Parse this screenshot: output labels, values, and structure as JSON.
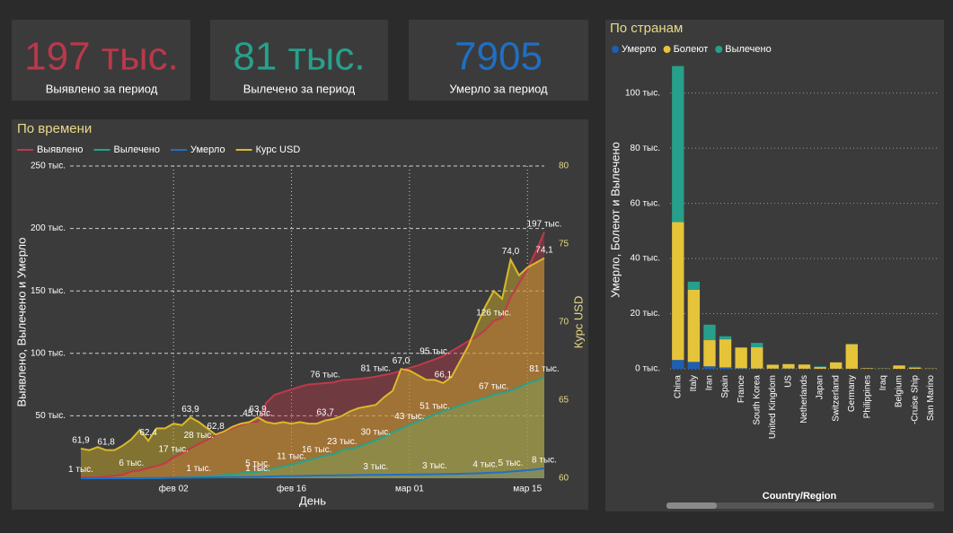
{
  "kpis": [
    {
      "value": "197 тыс.",
      "label": "Выявлено за период"
    },
    {
      "value": "81 тыс.",
      "label": "Вылечено за период"
    },
    {
      "value": "7905",
      "label": "Умерло за период"
    }
  ],
  "chart_data": [
    {
      "type": "line",
      "title": "По времени",
      "x_label": "День",
      "y_label": "Выявлено, Вылечено и Умерло",
      "y2_label": "Курс USD",
      "area": true,
      "grid": true,
      "categories": [
        null,
        null,
        null,
        null,
        null,
        null,
        null,
        null,
        null,
        null,
        null,
        "фев 02",
        null,
        null,
        null,
        null,
        null,
        null,
        null,
        null,
        null,
        null,
        null,
        null,
        null,
        "фев 16",
        null,
        null,
        null,
        null,
        null,
        null,
        null,
        null,
        null,
        null,
        null,
        null,
        null,
        "мар 01",
        null,
        null,
        null,
        null,
        null,
        null,
        null,
        null,
        null,
        null,
        null,
        null,
        null,
        "мар 15",
        null,
        null
      ],
      "ylim": [
        0,
        250
      ],
      "yticks": [
        {
          "value": 50,
          "label": "50 тыс."
        },
        {
          "value": 100,
          "label": "100 тыс."
        },
        {
          "value": 150,
          "label": "150 тыс."
        },
        {
          "value": 200,
          "label": "200 тыс."
        },
        {
          "value": 250,
          "label": "250 тыс."
        }
      ],
      "y2lim": [
        60,
        80
      ],
      "y2ticks": [
        60,
        65,
        70,
        75,
        80
      ],
      "series": [
        {
          "name": "Выявлено",
          "color": "#c1394a",
          "values": [
            0.6,
            0.7,
            0.9,
            1.4,
            2.1,
            2.9,
            5.6,
            6.2,
            8.2,
            9.9,
            12.0,
            16.8,
            19.9,
            23.9,
            27.6,
            30.8,
            34.4,
            37.1,
            40.2,
            42.8,
            44.8,
            45.2,
            60.4,
            66.9,
            69.0,
            71.2,
            73.3,
            75.1,
            75.6,
            76.2,
            76.8,
            78.6,
            79.0,
            79.6,
            80.4,
            81.4,
            82.7,
            84.1,
            86.0,
            88.4,
            90.3,
            92.8,
            95.1,
            97.9,
            101.8,
            105.8,
            109.8,
            113.6,
            118.6,
            125.9,
            128.4,
            145.2,
            156.1,
            167.5,
            181.6,
            197.1
          ],
          "value_labels": [
            "1 тыс.",
            null,
            null,
            null,
            null,
            null,
            "6 тыс.",
            null,
            null,
            null,
            null,
            "17 тыс.",
            null,
            null,
            "28 тыс.",
            null,
            null,
            null,
            null,
            null,
            null,
            "45 тыс.",
            null,
            null,
            null,
            null,
            null,
            null,
            null,
            "76 тыс.",
            null,
            null,
            null,
            null,
            null,
            "81 тыс.",
            null,
            null,
            null,
            null,
            null,
            null,
            "95 тыс.",
            null,
            null,
            null,
            null,
            null,
            null,
            "126 тыс.",
            null,
            null,
            null,
            null,
            null,
            "197 тыс."
          ]
        },
        {
          "name": "Вылечено",
          "color": "#26a38b",
          "values": [
            0.03,
            0.03,
            0.04,
            0.04,
            0.05,
            0.06,
            0.11,
            0.13,
            0.14,
            0.22,
            0.28,
            0.47,
            0.62,
            0.85,
            1.12,
            1.49,
            2.01,
            2.62,
            3.24,
            3.95,
            4.68,
            5.15,
            6.3,
            8.06,
            9.4,
            10.87,
            12.58,
            14.35,
            16.12,
            18.18,
            18.89,
            22.89,
            23.39,
            25.23,
            27.91,
            30.38,
            33.28,
            36.71,
            39.78,
            42.72,
            45.6,
            48.23,
            51.17,
            53.8,
            55.87,
            58.36,
            60.69,
            62.49,
            64.4,
            67.0,
            68.32,
            70.25,
            72.62,
            76.03,
            78.09,
            80.84
          ],
          "value_labels": [
            null,
            null,
            null,
            null,
            null,
            null,
            null,
            null,
            null,
            null,
            null,
            null,
            null,
            null,
            "1 тыс.",
            null,
            null,
            null,
            null,
            null,
            null,
            "5 тыс.",
            null,
            null,
            null,
            "11 тыс.",
            null,
            null,
            "16 тыс.",
            null,
            null,
            "23 тыс.",
            null,
            null,
            null,
            "30 тыс.",
            null,
            null,
            null,
            "43 тыс.",
            null,
            null,
            "51 тыс.",
            null,
            null,
            null,
            null,
            null,
            null,
            "67 тыс.",
            null,
            null,
            null,
            null,
            null,
            "81 тыс."
          ]
        },
        {
          "name": "Умерло",
          "color": "#1e6fc6",
          "values": [
            0.017,
            0.018,
            0.026,
            0.042,
            0.056,
            0.082,
            0.131,
            0.133,
            0.171,
            0.213,
            0.259,
            0.362,
            0.426,
            0.492,
            0.564,
            0.634,
            0.719,
            0.806,
            0.906,
            1.013,
            1.113,
            1.118,
            1.371,
            1.523,
            1.666,
            1.77,
            1.868,
            2.007,
            2.122,
            2.247,
            2.251,
            2.458,
            2.469,
            2.629,
            2.708,
            2.77,
            2.814,
            2.872,
            2.941,
            2.996,
            3.085,
            3.16,
            3.254,
            3.348,
            3.46,
            3.558,
            3.802,
            3.988,
            4.262,
            4.615,
            4.72,
            5.404,
            5.819,
            6.44,
            7.126,
            7.905
          ],
          "value_labels": [
            null,
            null,
            null,
            null,
            null,
            null,
            null,
            null,
            null,
            null,
            null,
            null,
            null,
            null,
            null,
            null,
            null,
            null,
            null,
            null,
            null,
            "1 тыс.",
            null,
            null,
            null,
            null,
            null,
            null,
            null,
            null,
            null,
            null,
            null,
            null,
            null,
            "3 тыс.",
            null,
            null,
            null,
            null,
            null,
            null,
            "3 тыс.",
            null,
            null,
            null,
            null,
            null,
            "4 тыс.",
            null,
            null,
            "5 тыс.",
            null,
            null,
            null,
            "8 тыс."
          ]
        },
        {
          "name": "Курс USD",
          "color": "#d9b92a",
          "axis": "y2",
          "values": [
            61.9,
            61.8,
            62.0,
            61.8,
            61.8,
            62.1,
            62.5,
            63.1,
            62.4,
            63.2,
            63.2,
            63.5,
            63.4,
            63.9,
            63.6,
            63.2,
            62.8,
            63.0,
            63.3,
            63.5,
            63.6,
            63.9,
            63.6,
            63.5,
            63.6,
            63.5,
            63.6,
            63.5,
            63.5,
            63.7,
            63.8,
            64.0,
            64.3,
            64.5,
            64.6,
            64.7,
            65.2,
            65.6,
            67.0,
            66.9,
            66.6,
            66.3,
            66.3,
            66.1,
            66.5,
            67.5,
            68.5,
            69.8,
            71.0,
            72.0,
            71.5,
            74.0,
            73.0,
            73.5,
            73.8,
            74.1
          ],
          "value_labels": [
            "61,9",
            null,
            null,
            "61,8",
            null,
            null,
            null,
            null,
            "62,4",
            null,
            null,
            null,
            null,
            "63,9",
            null,
            null,
            "62,8",
            null,
            null,
            null,
            null,
            "63,9",
            null,
            null,
            null,
            null,
            null,
            null,
            null,
            "63,7",
            null,
            null,
            null,
            null,
            null,
            null,
            null,
            null,
            "67,0",
            null,
            null,
            null,
            null,
            "66,1",
            null,
            null,
            null,
            null,
            null,
            null,
            null,
            "74,0",
            null,
            null,
            null,
            "74,1"
          ]
        }
      ]
    },
    {
      "type": "bar",
      "stacked": true,
      "title": "По странам",
      "x_label": "Country/Region",
      "y_label": "Умерло, Болеют и Вылечено",
      "grid": true,
      "categories": [
        "China",
        "Italy",
        "Iran",
        "Spain",
        "France",
        "South Korea",
        "United Kingdom",
        "US",
        "Netherlands",
        "Japan",
        "Switzerland",
        "Germany",
        "Philippines",
        "Iraq",
        "Belgium",
        "-Cruise Ship",
        "San Marino"
      ],
      "ylim": [
        0,
        110
      ],
      "yticks": [
        {
          "value": 0,
          "label": "0 тыс."
        },
        {
          "value": 20,
          "label": "20 тыс."
        },
        {
          "value": 40,
          "label": "40 тыс."
        },
        {
          "value": 60,
          "label": "60 тыс."
        },
        {
          "value": 80,
          "label": "80 тыс."
        },
        {
          "value": 100,
          "label": "100 тыс."
        }
      ],
      "series": [
        {
          "name": "Умерло",
          "color": "#1e5fb4",
          "values": [
            3.2,
            2.5,
            0.9,
            0.5,
            0.2,
            0.1,
            0.07,
            0.1,
            0.04,
            0.03,
            0.03,
            0.03,
            0.01,
            0.01,
            0.005,
            0.007,
            0.02
          ]
        },
        {
          "name": "Болеют",
          "color": "#e6c43a",
          "values": [
            50.0,
            26.2,
            9.5,
            10.2,
            7.5,
            7.7,
            1.4,
            1.6,
            1.5,
            0.6,
            2.3,
            8.9,
            0.2,
            0.1,
            1.2,
            0.4,
            0.1
          ]
        },
        {
          "name": "Вылечено",
          "color": "#26a08a",
          "values": [
            56.6,
            2.9,
            5.6,
            1.1,
            0.1,
            1.6,
            0.02,
            0.1,
            0.0,
            0.2,
            0.005,
            0.07,
            0.0,
            0.03,
            0.0,
            0.3,
            0.0
          ]
        }
      ]
    }
  ]
}
